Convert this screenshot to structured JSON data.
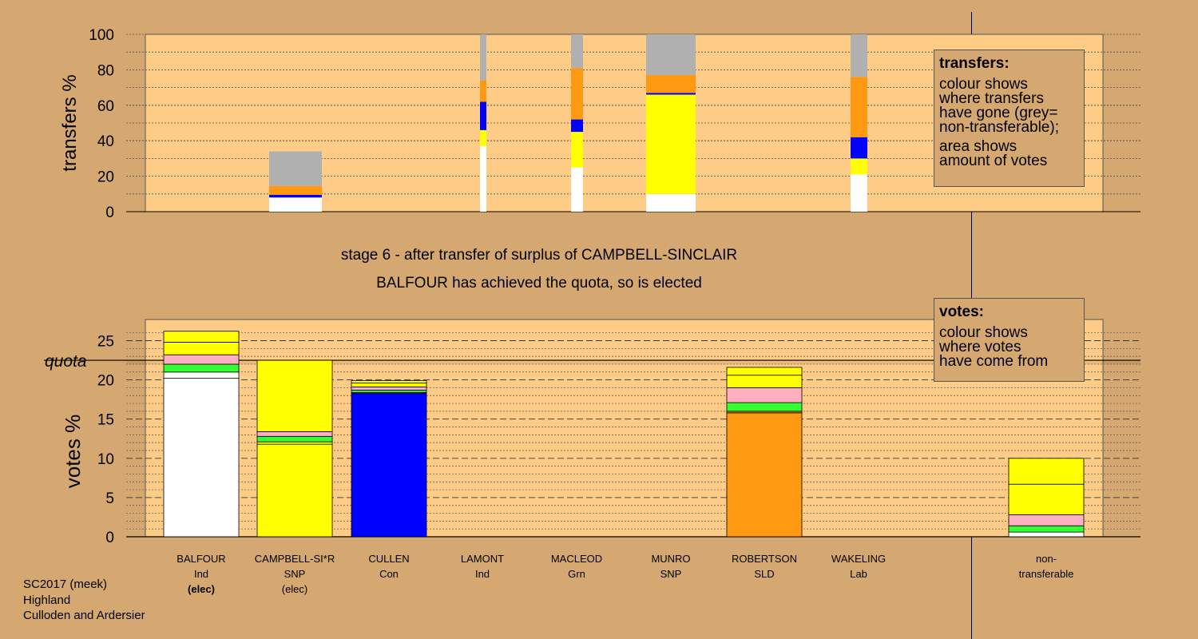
{
  "colors": {
    "background": "#d4a870",
    "panel": "#ffcc88",
    "white": "#ffffff",
    "yellow": "#ffff00",
    "green": "#33ff33",
    "pink": "#ffb0c0",
    "blue": "#0000ff",
    "orange": "#ff9911",
    "grey": "#b0b0b0"
  },
  "top_chart": {
    "ylabel": "transfers %",
    "ticks": [
      "0",
      "20",
      "40",
      "60",
      "80",
      "100"
    ]
  },
  "captions": {
    "stage": "stage 6 - after transfer of surplus of CAMPBELL-SINCLAIR",
    "elected": "BALFOUR has achieved the quota, so is elected"
  },
  "bottom_chart": {
    "ylabel": "votes %",
    "quota_label": "quota",
    "ticks": [
      "0",
      "5",
      "10",
      "15",
      "20",
      "25"
    ]
  },
  "legend_transfers": {
    "title": "transfers:",
    "lines1": [
      "colour shows",
      "where transfers",
      "have gone (grey=",
      "non-transferable);"
    ],
    "lines2": [
      "area shows",
      "amount of votes"
    ]
  },
  "legend_votes": {
    "title": "votes:",
    "lines": [
      "colour shows",
      "where votes",
      "have come from"
    ]
  },
  "candidates": [
    {
      "name": "BALFOUR",
      "party": "Ind",
      "status": "(elec)",
      "status_bold": true
    },
    {
      "name": "CAMPBELL-SI*R",
      "party": "SNP",
      "status": "(elec)",
      "status_bold": false
    },
    {
      "name": "CULLEN",
      "party": "Con",
      "status": ""
    },
    {
      "name": "LAMONT",
      "party": "Ind",
      "status": ""
    },
    {
      "name": "MACLEOD",
      "party": "Grn",
      "status": ""
    },
    {
      "name": "MUNRO",
      "party": "SNP",
      "status": ""
    },
    {
      "name": "ROBERTSON",
      "party": "SLD",
      "status": ""
    },
    {
      "name": "WAKELING",
      "party": "Lab",
      "status": ""
    }
  ],
  "nontransferable_label": [
    "non-",
    "transferable"
  ],
  "footer": [
    "SC2017 (meek)",
    "Highland",
    "Culloden and Ardersier"
  ],
  "chart_data": [
    {
      "type": "bar",
      "stacked": true,
      "ylabel": "transfers %",
      "ylim": [
        0,
        100
      ],
      "grid": true,
      "bars": [
        {
          "segments": [
            [
              "white",
              8
            ],
            [
              "blue",
              1.5
            ],
            [
              "orange",
              5
            ],
            [
              "grey",
              19.5
            ]
          ]
        },
        {
          "segments": [
            [
              "white",
              37
            ],
            [
              "yellow",
              9
            ],
            [
              "blue",
              16
            ],
            [
              "orange",
              12
            ],
            [
              "grey",
              26
            ]
          ]
        },
        {
          "segments": [
            [
              "white",
              25
            ],
            [
              "yellow",
              20
            ],
            [
              "blue",
              7
            ],
            [
              "orange",
              29
            ],
            [
              "grey",
              19
            ]
          ]
        },
        {
          "segments": [
            [
              "white",
              10
            ],
            [
              "yellow",
              56
            ],
            [
              "blue",
              1
            ],
            [
              "orange",
              10
            ],
            [
              "grey",
              23
            ]
          ]
        },
        {
          "segments": [
            [
              "white",
              21
            ],
            [
              "yellow",
              9
            ],
            [
              "blue",
              12
            ],
            [
              "orange",
              34
            ],
            [
              "grey",
              24
            ]
          ]
        }
      ]
    },
    {
      "type": "bar",
      "stacked": true,
      "ylabel": "votes %",
      "ylim": [
        0,
        27.5
      ],
      "quota": 22.5,
      "grid": true,
      "bars": [
        {
          "segments": [
            [
              "white",
              20.2
            ],
            [
              "white",
              0.8
            ],
            [
              "green",
              1
            ],
            [
              "pink",
              1.2
            ],
            [
              "yellow",
              1.6
            ],
            [
              "yellow",
              1.4
            ]
          ]
        },
        {
          "segments": [
            [
              "yellow",
              11.8
            ],
            [
              "yellow",
              0.3
            ],
            [
              "green",
              0.7
            ],
            [
              "pink",
              0.6
            ],
            [
              "yellow",
              9.1
            ]
          ]
        },
        {
          "segments": [
            [
              "blue",
              18.2
            ],
            [
              "blue",
              0.2
            ],
            [
              "green",
              0.3
            ],
            [
              "pink",
              0.4
            ],
            [
              "yellow",
              0.5
            ],
            [
              "yellow",
              0.3
            ]
          ]
        },
        {
          "segments": []
        },
        {
          "segments": []
        },
        {
          "segments": []
        },
        {
          "segments": [
            [
              "orange",
              15.8
            ],
            [
              "orange",
              0.2
            ],
            [
              "green",
              1.1
            ],
            [
              "pink",
              1.9
            ],
            [
              "yellow",
              1.6
            ],
            [
              "yellow",
              1
            ]
          ]
        },
        {
          "segments": []
        },
        {
          "segments": [
            [
              "white",
              0.6
            ],
            [
              "green",
              0.8
            ],
            [
              "pink",
              1.4
            ],
            [
              "yellow",
              3.9
            ],
            [
              "yellow",
              3.3
            ]
          ]
        }
      ]
    }
  ]
}
